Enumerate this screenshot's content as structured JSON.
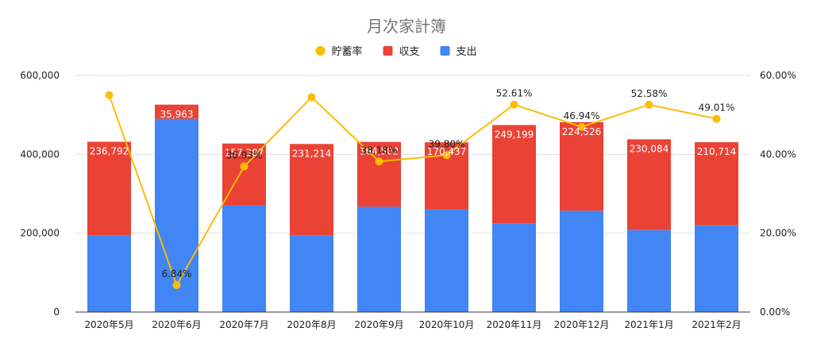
{
  "chart_data": {
    "type": "bar",
    "title": "月次家計簿",
    "categories": [
      "2020年5月",
      "2020年6月",
      "2020年7月",
      "2020年8月",
      "2020年9月",
      "2020年10月",
      "2020年11月",
      "2020年12月",
      "2021年1月",
      "2021年2月"
    ],
    "series": [
      {
        "name": "支出",
        "kind": "bar",
        "axis": "left",
        "color": "#4285f4",
        "values": [
          195000,
          490000,
          270000,
          195000,
          267000,
          260000,
          225000,
          257000,
          208000,
          220000
        ]
      },
      {
        "name": "収支",
        "kind": "bar",
        "axis": "left",
        "color": "#ea4335",
        "values": [
          236792,
          35963,
          157387,
          231214,
          164502,
          170437,
          249199,
          224526,
          230084,
          210714
        ],
        "labels": [
          "236,792",
          "35,963",
          "157,387",
          "231,214",
          "164,502",
          "170,437",
          "249,199",
          "224,526",
          "230,084",
          "210,714"
        ]
      },
      {
        "name": "貯蓄率",
        "kind": "line",
        "axis": "right",
        "color": "#fbbc04",
        "values": [
          55.0,
          6.84,
          36.93,
          54.5,
          38.18,
          39.8,
          52.61,
          46.94,
          52.58,
          49.01
        ],
        "labels": [
          "",
          "6.84%",
          "36.93%",
          "",
          "38.18%",
          "39.80%",
          "52.61%",
          "46.94%",
          "52.58%",
          "49.01%"
        ]
      }
    ],
    "stacked": true,
    "legend_order": [
      "貯蓄率",
      "収支",
      "支出"
    ],
    "legend_position": "top",
    "y_left": {
      "lim": [
        0,
        600000
      ],
      "ticks": [
        0,
        200000,
        400000,
        600000
      ],
      "tick_labels": [
        "0",
        "200,000",
        "400,000",
        "600,000"
      ]
    },
    "y_right": {
      "lim": [
        0,
        60
      ],
      "ticks": [
        0,
        20,
        40,
        60
      ],
      "tick_labels": [
        "0.00%",
        "20.00%",
        "40.00%",
        "60.00%"
      ]
    },
    "grid": true
  }
}
